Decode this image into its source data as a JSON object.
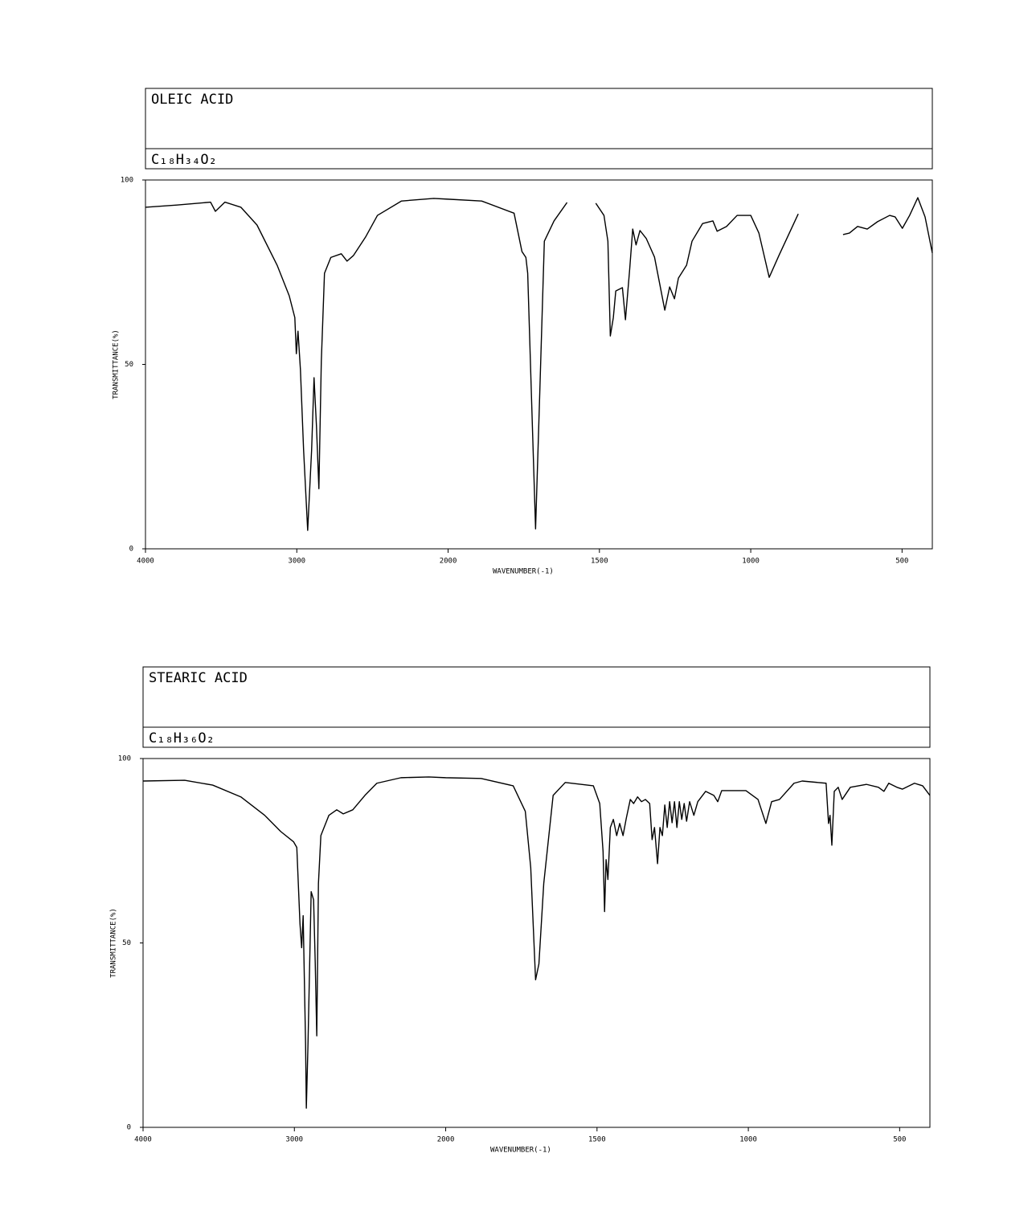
{
  "chart_data": [
    {
      "type": "line",
      "title": "OLEIC ACID",
      "formula": "C₁₈H₃₄O₂",
      "xlabel": "WAVENUMBER(-1)",
      "ylabel": "TRANSMITTANCE(%)",
      "color": "#000000",
      "xlim": [
        4000,
        400
      ],
      "xscale": {
        "break": 2000,
        "factor": 2
      },
      "xticks": [
        4000,
        3000,
        2000,
        1500,
        1000,
        500
      ],
      "ylim": [
        0,
        100
      ],
      "yticks": [
        0,
        50,
        100
      ],
      "x": [
        4000,
        3793,
        3570,
        3538,
        3475,
        3369,
        3263,
        3130,
        3050,
        3013,
        3003,
        2992,
        2976,
        2955,
        2928,
        2902,
        2886,
        2870,
        2854,
        2838,
        2817,
        2775,
        2706,
        2668,
        2626,
        2546,
        2467,
        2308,
        2095,
        2000,
        1889,
        1782,
        1756,
        1743,
        1737,
        1724,
        1711,
        1698,
        1682,
        1650,
        1607,
        1560,
        1512,
        1485,
        1472,
        1464,
        1454,
        1446,
        1424,
        1414,
        1400,
        1390,
        1379,
        1366,
        1345,
        1318,
        1300,
        1284,
        1268,
        1252,
        1239,
        1212,
        1194,
        1159,
        1125,
        1111,
        1080,
        1045,
        1000,
        973,
        939,
        907,
        843,
        770,
        695,
        674,
        647,
        615,
        581,
        541,
        523,
        499,
        475,
        448,
        424,
        400
      ],
      "values": [
        92.6,
        93.2,
        94,
        91.5,
        94,
        92.6,
        87.8,
        76.9,
        68.6,
        62.7,
        52.9,
        59,
        48.6,
        26.8,
        5,
        26.8,
        46.4,
        33.3,
        16.3,
        50.8,
        74.7,
        79,
        80,
        78,
        79.5,
        84.5,
        90.4,
        94.3,
        95,
        94.8,
        94.3,
        91,
        80.6,
        79,
        74.7,
        39.9,
        5.4,
        39.9,
        83.4,
        88.9,
        93.9,
        null,
        93.7,
        90.4,
        83.4,
        57.7,
        62.7,
        69.9,
        70.8,
        62.1,
        75.8,
        86.7,
        82.4,
        86.3,
        84.1,
        79.1,
        71.5,
        64.7,
        71,
        67.8,
        73.4,
        76.9,
        83.4,
        88.2,
        88.9,
        86.1,
        87.4,
        90.4,
        90.4,
        85.6,
        73.6,
        79.5,
        90.8,
        null,
        85.2,
        85.6,
        87.4,
        86.7,
        88.7,
        90.4,
        90,
        86.9,
        90.4,
        95.2,
        90,
        80.2
      ]
    },
    {
      "type": "line",
      "title": "STEARIC ACID",
      "formula": "C₁₈H₃₆O₂",
      "xlabel": "WAVENUMBER(-1)",
      "ylabel": "TRANSMITTANCE(%)",
      "color": "#000000",
      "xlim": [
        4000,
        400
      ],
      "xscale": {
        "break": 2000,
        "factor": 2
      },
      "xticks": [
        4000,
        3000,
        2000,
        1500,
        1000,
        500
      ],
      "ylim": [
        0,
        100
      ],
      "yticks": [
        0,
        50,
        100
      ],
      "x": [
        4000,
        3725,
        3540,
        3354,
        3196,
        3090,
        3005,
        2984,
        2963,
        2952,
        2942,
        2926,
        2921,
        2910,
        2889,
        2873,
        2862,
        2852,
        2841,
        2825,
        2772,
        2720,
        2677,
        2614,
        2534,
        2455,
        2296,
        2111,
        2000,
        1883,
        1777,
        1737,
        1719,
        1703,
        1692,
        1676,
        1645,
        1605,
        1512,
        1491,
        1480,
        1475,
        1470,
        1464,
        1456,
        1446,
        1435,
        1425,
        1414,
        1403,
        1390,
        1379,
        1366,
        1353,
        1340,
        1326,
        1318,
        1310,
        1300,
        1292,
        1284,
        1276,
        1268,
        1260,
        1252,
        1244,
        1236,
        1228,
        1220,
        1212,
        1204,
        1194,
        1180,
        1167,
        1141,
        1114,
        1101,
        1088,
        1008,
        968,
        942,
        923,
        897,
        849,
        822,
        743,
        735,
        730,
        724,
        716,
        703,
        690,
        663,
        610,
        570,
        552,
        536,
        509,
        491,
        451,
        424,
        400
      ],
      "values": [
        93.9,
        94.1,
        92.8,
        89.6,
        84.6,
        80.2,
        77.4,
        75.9,
        55.2,
        48.7,
        57.4,
        22.6,
        5.2,
        22.6,
        63.9,
        61.7,
        44.3,
        24.8,
        66.1,
        79.1,
        84.6,
        86.1,
        85,
        86.1,
        90,
        93.3,
        94.8,
        95,
        94.8,
        94.6,
        92.6,
        85.7,
        70.4,
        40,
        44.3,
        66.1,
        90,
        93.5,
        92.6,
        87.8,
        74.8,
        58.5,
        72.6,
        67.2,
        81.3,
        83.5,
        79.1,
        82.4,
        79.1,
        83.9,
        88.9,
        87.8,
        89.6,
        88.3,
        88.9,
        87.8,
        78,
        81.3,
        71.5,
        81.3,
        79.1,
        87.4,
        81.3,
        88.3,
        82.6,
        88.3,
        81.3,
        88.3,
        83.5,
        87.8,
        83,
        88.3,
        84.6,
        88.3,
        91.1,
        90,
        88.3,
        91.3,
        91.3,
        88.9,
        82.4,
        88.3,
        88.9,
        93.3,
        93.9,
        93.3,
        82.4,
        84.6,
        76.5,
        91.1,
        92.2,
        88.9,
        92.2,
        93,
        92.2,
        91.1,
        93.3,
        92.2,
        91.7,
        93.3,
        92.6,
        90
      ]
    }
  ]
}
